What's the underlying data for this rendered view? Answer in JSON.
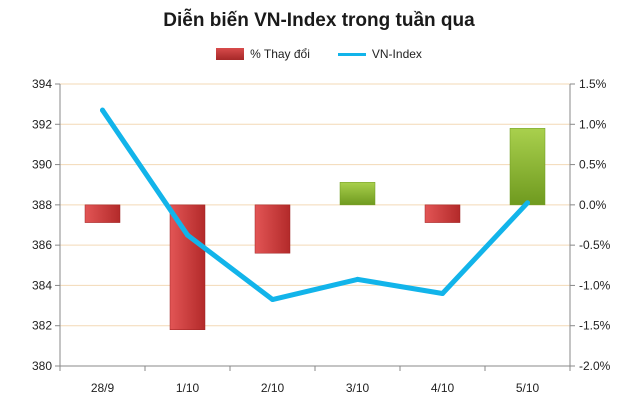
{
  "chart_data": {
    "type": "bar+line",
    "title": "Diễn biến VN-Index trong tuần qua",
    "categories": [
      "28/9",
      "1/10",
      "2/10",
      "3/10",
      "4/10",
      "5/10"
    ],
    "series": [
      {
        "name": "% Thay đổi",
        "type": "bar",
        "axis": "right",
        "values": [
          -0.22,
          -1.55,
          -0.6,
          0.28,
          -0.22,
          0.95
        ],
        "colors": [
          "#c93232",
          "#c93232",
          "#c93232",
          "#8cb42c",
          "#c93232",
          "#8cb42c"
        ]
      },
      {
        "name": "VN-Index",
        "type": "line",
        "axis": "left",
        "values": [
          392.7,
          386.5,
          383.3,
          384.3,
          383.6,
          388.1
        ],
        "color": "#12b4ea"
      }
    ],
    "y_left": {
      "min": 380,
      "max": 394,
      "step": 2,
      "ticks": [
        "380",
        "382",
        "384",
        "386",
        "388",
        "390",
        "392",
        "394"
      ]
    },
    "y_right": {
      "min": -2.0,
      "max": 1.5,
      "step": 0.5,
      "ticks": [
        "-2.0%",
        "-1.5%",
        "-1.0%",
        "-0.5%",
        "0.0%",
        "0.5%",
        "1.0%",
        "1.5%"
      ]
    },
    "legend_position": "top",
    "grid": true
  }
}
